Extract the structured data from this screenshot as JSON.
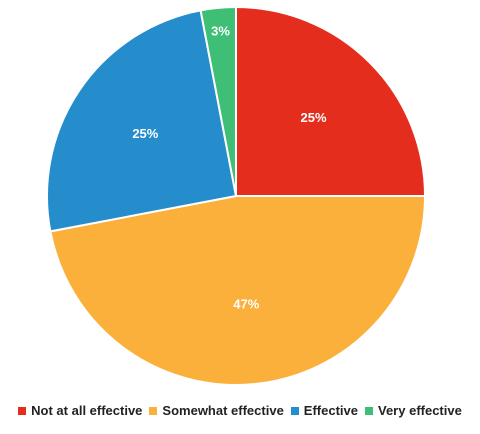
{
  "chart_data": {
    "type": "pie",
    "slices": [
      {
        "label": "Not at all effective",
        "value": 25,
        "display": "25%",
        "color": "#e52d1e"
      },
      {
        "label": "Somewhat effective",
        "value": 47,
        "display": "47%",
        "color": "#fbb03b"
      },
      {
        "label": "Effective",
        "value": 25,
        "display": "25%",
        "color": "#258dcc"
      },
      {
        "label": "Very effective",
        "value": 3,
        "display": "3%",
        "color": "#3ebf75"
      }
    ],
    "start_angle_deg": 0,
    "direction": "clockwise",
    "legend_position": "bottom"
  }
}
